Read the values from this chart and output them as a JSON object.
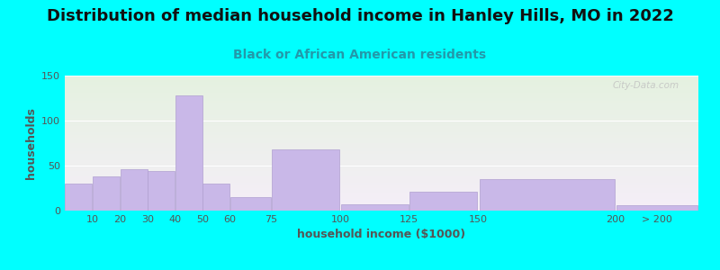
{
  "title": "Distribution of median household income in Hanley Hills, MO in 2022",
  "subtitle": "Black or African American residents",
  "xlabel": "household income ($1000)",
  "ylabel": "households",
  "bar_color": "#c9b8e8",
  "bar_edge_color": "#b0a0d0",
  "bin_edges": [
    0,
    10,
    20,
    30,
    40,
    50,
    60,
    75,
    100,
    125,
    150,
    200,
    230
  ],
  "bin_labels": [
    "10",
    "20",
    "30",
    "40",
    "50",
    "60",
    "75",
    "100",
    "125",
    "150",
    "200",
    "> 200"
  ],
  "values": [
    30,
    38,
    46,
    44,
    128,
    30,
    15,
    68,
    7,
    21,
    35,
    6
  ],
  "ylim": [
    0,
    150
  ],
  "yticks": [
    0,
    50,
    100,
    150
  ],
  "background_color": "#00ffff",
  "plot_bg_top": "#e5f2e0",
  "plot_bg_bottom": "#f5eef8",
  "title_fontsize": 13,
  "subtitle_fontsize": 10,
  "axis_label_fontsize": 9,
  "tick_fontsize": 8,
  "watermark_text": "City-Data.com",
  "subtitle_color": "#2299aa",
  "title_color": "#111111",
  "tick_color": "#555555",
  "label_color": "#555555"
}
